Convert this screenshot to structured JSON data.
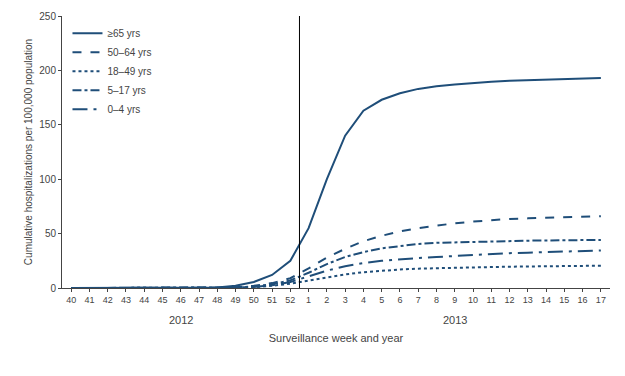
{
  "chart_data": {
    "type": "line",
    "xlabel": "Surveillance week and year",
    "ylabel": "Cumulative hospitalizations per 100,000 population",
    "categories": [
      "40",
      "41",
      "42",
      "43",
      "44",
      "45",
      "46",
      "47",
      "48",
      "49",
      "50",
      "51",
      "52",
      "1",
      "2",
      "3",
      "4",
      "5",
      "6",
      "7",
      "8",
      "9",
      "10",
      "11",
      "12",
      "13",
      "14",
      "15",
      "16",
      "17"
    ],
    "series": [
      {
        "name": "≥65 yrs",
        "color": "#1F4E79",
        "line_style": "solid",
        "values": [
          0.0,
          0.0,
          0.0,
          0.0,
          0.0,
          0.0,
          0.05,
          0.1,
          0.5,
          2.0,
          5.5,
          12.0,
          25.0,
          55.0,
          100.0,
          140.0,
          163.0,
          173.0,
          179.0,
          183.0,
          185.5,
          187.0,
          188.5,
          189.5,
          190.5,
          191.0,
          191.5,
          192.0,
          192.5,
          193.0
        ]
      },
      {
        "name": "50–64 yrs",
        "color": "#1F4E79",
        "line_style": "dash",
        "values": [
          0.0,
          0.0,
          0.0,
          0.0,
          0.0,
          0.0,
          0.0,
          0.05,
          0.2,
          0.7,
          2.0,
          4.5,
          9.0,
          18.0,
          28.0,
          36.0,
          43.0,
          48.0,
          52.0,
          55.0,
          57.5,
          59.5,
          61.0,
          62.5,
          63.5,
          64.0,
          64.5,
          65.0,
          65.5,
          66.0
        ]
      },
      {
        "name": "18–49 yrs",
        "color": "#1F4E79",
        "line_style": "dot",
        "values": [
          0.0,
          0.0,
          0.0,
          0.0,
          0.0,
          0.0,
          0.0,
          0.05,
          0.1,
          0.3,
          0.8,
          2.0,
          4.0,
          7.0,
          10.0,
          12.5,
          14.5,
          16.0,
          17.0,
          17.8,
          18.3,
          18.7,
          19.0,
          19.3,
          19.6,
          19.8,
          20.0,
          20.2,
          20.4,
          20.5
        ]
      },
      {
        "name": "5–17 yrs",
        "color": "#1F4E79",
        "line_style": "dashdot",
        "values": [
          0.0,
          0.0,
          0.0,
          0.0,
          0.0,
          0.0,
          0.0,
          0.05,
          0.2,
          0.5,
          1.5,
          3.5,
          7.0,
          14.0,
          22.0,
          28.5,
          33.0,
          36.5,
          38.5,
          40.5,
          41.5,
          42.0,
          42.5,
          43.0,
          43.2,
          43.5,
          43.7,
          43.8,
          44.0,
          44.2
        ]
      },
      {
        "name": "0–4 yrs",
        "color": "#1F4E79",
        "line_style": "longdashdot",
        "values": [
          0.0,
          0.0,
          0.0,
          0.0,
          0.0,
          0.0,
          0.0,
          0.05,
          0.15,
          0.4,
          1.0,
          2.5,
          5.5,
          11.0,
          16.0,
          20.0,
          23.0,
          25.0,
          26.5,
          27.5,
          28.5,
          29.5,
          30.5,
          31.5,
          32.0,
          32.5,
          33.0,
          33.5,
          34.0,
          34.5
        ]
      }
    ],
    "ylim": [
      0,
      250
    ],
    "yticks": [
      0,
      50,
      100,
      150,
      200,
      250
    ],
    "grid": false,
    "legend": "upper left",
    "annotations": [
      {
        "text": "2012",
        "x": "46"
      },
      {
        "text": "2013",
        "x": "9"
      }
    ]
  }
}
